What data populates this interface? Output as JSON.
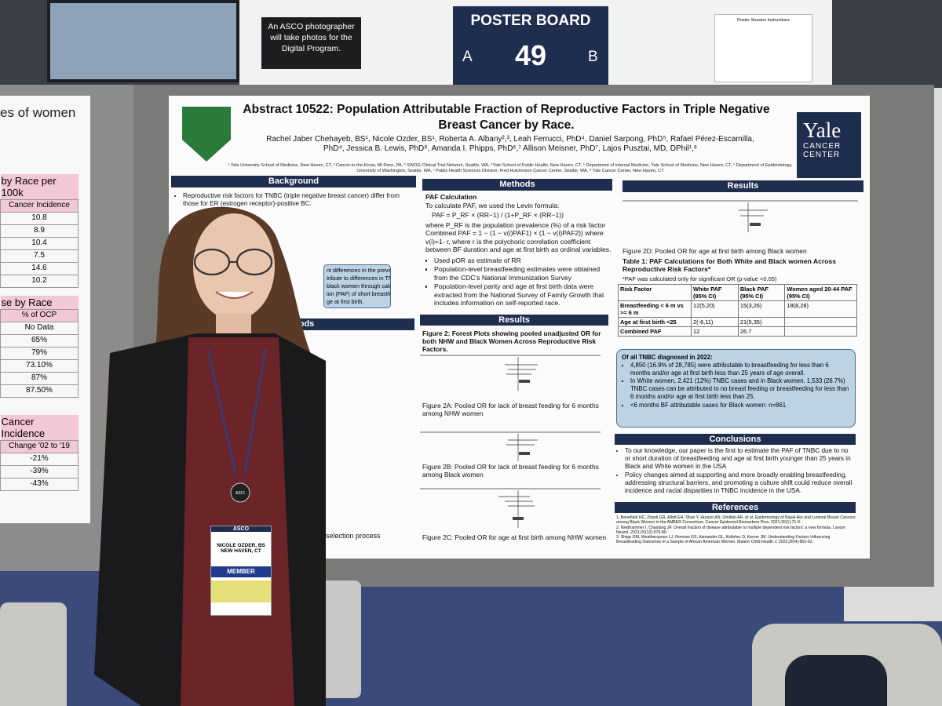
{
  "signs": {
    "photographer": "An ASCO photographer will take photos for the Digital Program.",
    "board_label": "POSTER BOARD",
    "board_a": "A",
    "board_number": "49",
    "board_b": "B",
    "instructions": "Poster Session Instructions"
  },
  "left_poster": {
    "heading": "es of women",
    "table1": {
      "title": "by Race per 100k",
      "header": "Cancer Incidence",
      "values": [
        "10.8",
        "8.9",
        "10.4",
        "7.5",
        "14.6",
        "10.2"
      ]
    },
    "table2": {
      "title": "se by Race",
      "header": "% of OCP",
      "values": [
        "No Data",
        "65%",
        "79%",
        "73.10%",
        "87%",
        "87.50%"
      ]
    },
    "table3": {
      "title": "Cancer Incidence",
      "header": "Change '02 to '19",
      "values": [
        "-21%",
        "-39%",
        "-43%"
      ]
    }
  },
  "poster": {
    "title": "Abstract 10522: Population Attributable Fraction of Reproductive Factors in Triple Negative Breast Cancer by Race.",
    "authors": "Rachel Jaber Chehayeb, BS¹, Nicole Ozder, BS¹, Roberta A. Albany²,³, Leah Ferrucci, PhD⁴, Daniel Sarpong, PhD⁵, Rafael Pérez-Escamilla, PhD⁴, Jessica B. Lewis, PhD⁸, Amanda I. Phipps, PhD⁶,⁷ Allison Meisner, PhD⁷, Lajos Pusztai, MD, DPhil¹,⁸",
    "affiliations": "¹ Yale University School of Medicine, New Haven, CT, ² Cancer-in-the-Know, Mt Penn, PA, ³ SWOG Clinical Trial Network, Seattle, WA, ⁴Yale School of Public Health, New Haven, CT, ⁵ Department of Internal Medicine, Yale School of Medicine, New Haven, CT, ⁶ Department of Epidemiology, University of Washington, Seattle, WA, ⁷ Public Health Sciences Division, Fred Hutchinson Cancer Center, Seattle, WA, ⁸ Yale Cancer Center, New Haven, CT",
    "logo": [
      "Yale",
      "CANCER",
      "CENTER"
    ],
    "background": {
      "heading": "Background",
      "bullet": "Reproductive risk factors for TNBC (triple negative breast cancer) differ from those for ER (estrogen receptor)-positive BC.",
      "aim": [
        "nt differences in the prevalence",
        "tribute to differences in TNBC",
        "black women through calculating",
        "ion (PAF) of short breastfeeding",
        "ge at first birth."
      ]
    },
    "methods_left": {
      "heading": "hods",
      "caption": "selection process"
    },
    "methods": {
      "heading": "Methods",
      "subheading": "PAF Calculation",
      "intro": "To calculate PAF, we used the Levin formula:",
      "formula": "PAF = P_RF × (RR−1) / (1+P_RF × (RR−1))",
      "where": "where P_RF is the population prevalence (%) of a risk factor",
      "combined": "Combined PAF = 1 − (1 − v(i)PAF1) × (1 − v(i)PAF2)) where v(i)=1- r,  where r is the polychoric correlation coefficient between BF duration and age at first birth as ordinal variables.",
      "bullets": [
        "Used pOR as estimate of RR",
        "Population-level breastfeeding estimates were obtained from the CDC's National Immunization Survey",
        "Population-level parity and age at first birth data were extracted from the National Survey of Family Growth that includes information on self-reported race."
      ]
    },
    "results_mid": {
      "heading": "Results",
      "figure2": "Figure 2: Forest Plots showing pooled unadjusted OR for both NHW and Black Women Across Reproductive Risk Factors.",
      "figure2a": "Figure 2A: Pooled OR for lack of breast feeding for 6 months among NHW women",
      "figure2b": "Figure 2B: Pooled OR for lack of breast feeding for 6 months among Black women",
      "figure2c": "Figure 2C: Pooled OR for age at first birth among  NHW women"
    },
    "results_right": {
      "heading": "Results",
      "figure2d": "Figure 2D: Pooled OR for age at first birth among Black women",
      "table_title": "Table 1: PAF Calculations for Both White and Black women Across Reproductive Risk Factors*",
      "table_note": "*PAF was calculated only for significant OR (p-value <0.05)",
      "table": {
        "header": [
          "Risk Factor",
          "White PAF (95% CI)",
          "Black PAF (95% CI)",
          "Women aged 20-44 PAF (95% CI)"
        ],
        "rows": [
          [
            "Breastfeeding < 6 m vs >= 6 m",
            "12(5,20)",
            "15(3,26)",
            "18(8,28)"
          ],
          [
            "Age at first birth <25",
            "2(-6,11)",
            "21(5,35)"
          ],
          [
            "Combined PAF",
            "12",
            "26.7"
          ]
        ]
      }
    },
    "summary": {
      "heading": "Of all TNBC diagnosed in 2022:",
      "bullets": [
        "4,850 (16.9% of 28,785) were attributable to breastfeeding for less than 6 months and/or age at first birth less than 25 years of age overall.",
        "In White women, 2,421 (12%) TNBC cases and in Black women, 1,533 (26.7%) TNBC cases can be attributed to no breast feeding or breastfeeding for less than 6 months and/or age at first birth less than 25.",
        "<6 months BF attributable cases for Black women: n=861"
      ]
    },
    "conclusions": {
      "heading": "Conclusions",
      "bullets": [
        "To our knowledge, our paper is the first to estimate the PAF of TNBC due to no or short duration of breastfeeding and age at first birth younger than 25 years in Black and White women in the USA",
        "Policy changes aimed at supporting and more broadly enabling breastfeeding, addressing structural barriers, and promoting a culture shift could reduce overall incidence and racial disparities in TNBC incidence in the USA."
      ]
    },
    "references": {
      "heading": "References",
      "items": [
        "1. Benefield HC, Zirpoli GR, Allott EH, Shan Y, Hurson AN, Omilian AR, et al. Epidemiology of Basal-like and Luminal Breast Cancers among Black Women in the AMBER Consortium. Cancer Epidemiol Biomarkers Prev. 2021;30(1):71-9.",
        "2. Niedhammer I, Chastang JF. Overall fraction of disease attributable to multiple dependent risk factors: a new formula. Lancet Neurol. 2021;20(12):979-80.",
        "3. Shipp GM, Weatherspoon LJ, Norman GS, Alexander GL, Kelleher D, Kerver JM. Understanding Factors Influencing Breastfeeding Outcomes in a Sample of African American Women. Matern Child Health J. 2022;26(4):853-62."
      ]
    }
  },
  "badge": {
    "event": "ASCO",
    "name": "NICOLE OZDER, BS",
    "location": "NEW HAVEN, CT",
    "role": "MEMBER",
    "lanyard": "ASCO"
  }
}
